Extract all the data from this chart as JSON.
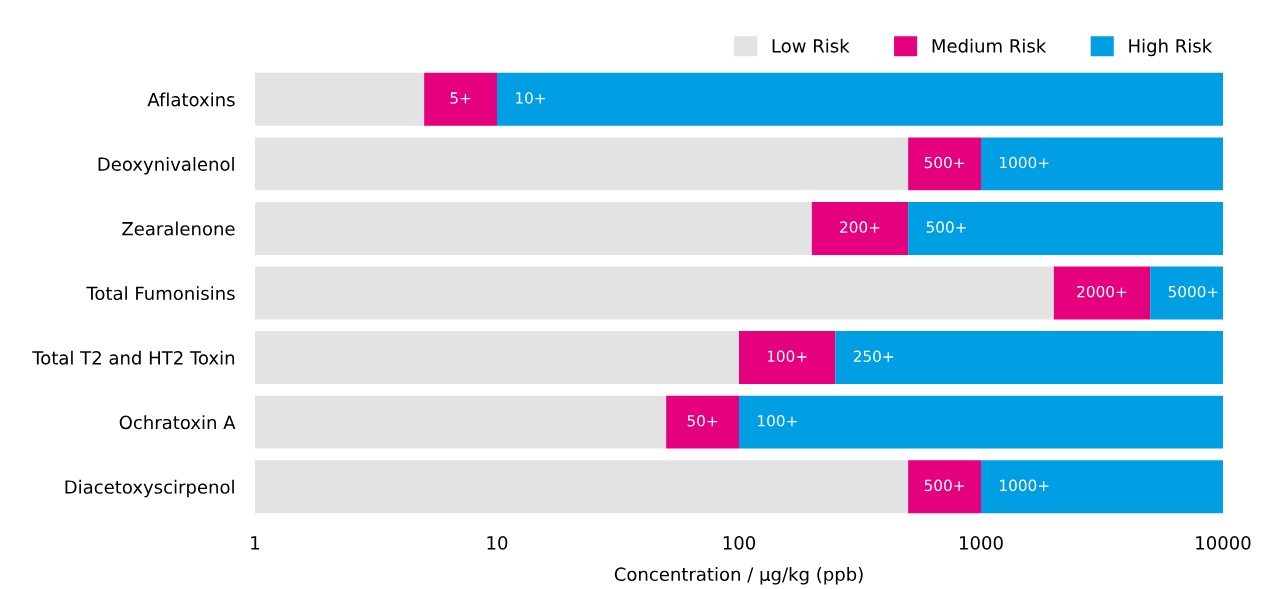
{
  "chart_data": {
    "type": "bar",
    "orientation": "horizontal",
    "log": "x",
    "xlabel": "Concentration / μg/kg (ppb)",
    "categories": [
      "Aflatoxins",
      "Deoxynivalenol",
      "Zearalenone",
      "Total Fumonisins",
      "Total T2 and HT2 Toxin",
      "Ochratoxin A",
      "Diacetoxyscirpenol"
    ],
    "xlim": [
      1,
      10000
    ],
    "xticks": [
      1,
      10,
      100,
      1000,
      10000
    ],
    "grid": false,
    "legend": "top right",
    "series": [
      {
        "name": "Low Risk",
        "color": "#e3e3e3",
        "base": [
          1,
          1,
          1,
          1,
          1,
          1,
          1
        ],
        "values": [
          4,
          499,
          199,
          1999,
          99,
          49,
          499
        ]
      },
      {
        "name": "Medium Risk",
        "color": "#e5007e",
        "base": [
          5,
          500,
          200,
          2000,
          100,
          50,
          500
        ],
        "values": [
          5,
          500,
          300,
          3000,
          150,
          50,
          500
        ],
        "value_labels": [
          "5+",
          "500+",
          "200+",
          "2000+",
          "100+",
          "50+",
          "500+"
        ]
      },
      {
        "name": "High Risk",
        "color": "#009fe3",
        "base": [
          10,
          1000,
          500,
          5000,
          250,
          100,
          1000
        ],
        "values": [
          9990,
          9000,
          9500,
          5000,
          9750,
          9900,
          9000
        ],
        "value_labels": [
          "10+",
          "1000+",
          "500+",
          "5000+",
          "250+",
          "100+",
          "1000+"
        ]
      }
    ]
  }
}
